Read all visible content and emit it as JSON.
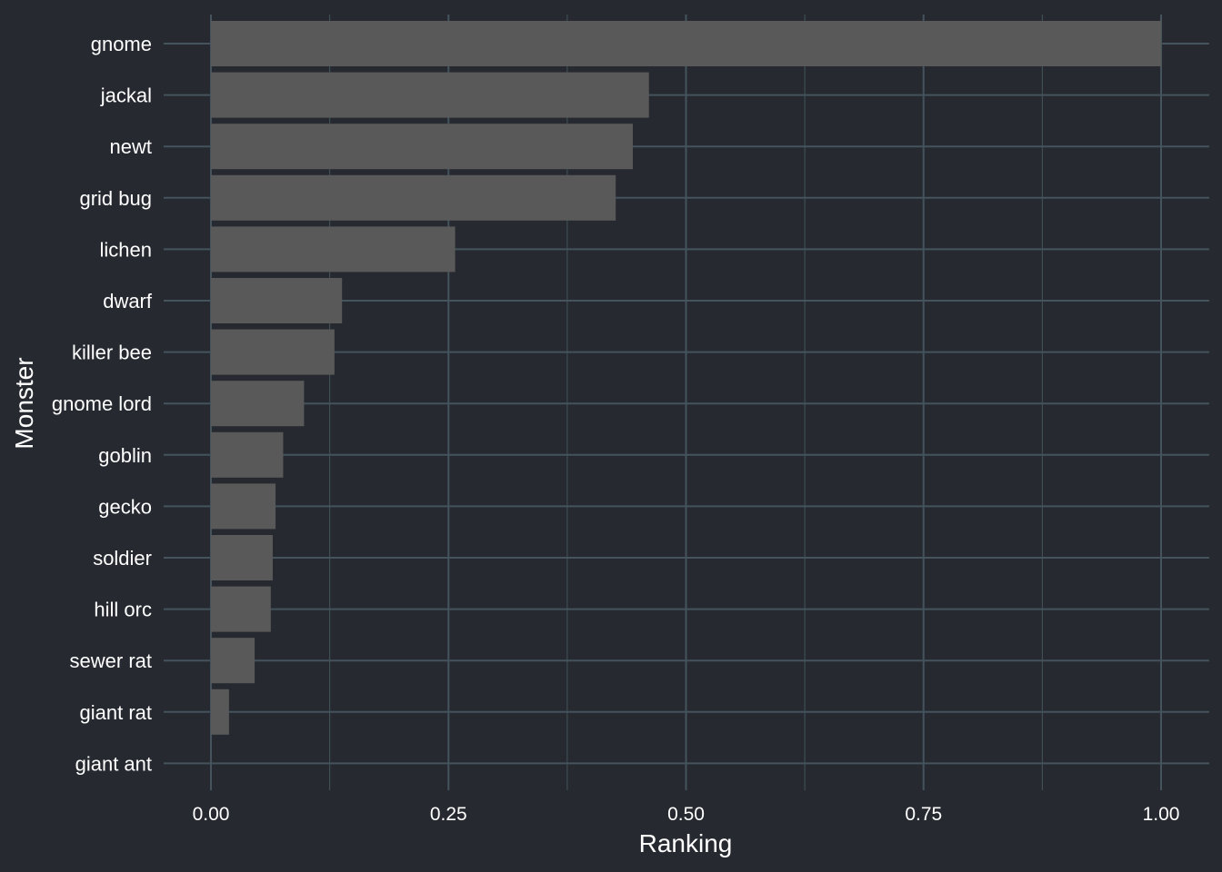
{
  "chart_data": {
    "type": "bar",
    "orientation": "horizontal",
    "xlabel": "Ranking",
    "ylabel": "Monster",
    "xlim": [
      0,
      1
    ],
    "x_ticks": [
      0,
      0.25,
      0.5,
      0.75,
      1
    ],
    "x_tick_labels": [
      "0.00",
      "0.25",
      "0.50",
      "0.75",
      "1.00"
    ],
    "grid": true,
    "categories": [
      "gnome",
      "jackal",
      "newt",
      "grid bug",
      "lichen",
      "dwarf",
      "killer bee",
      "gnome lord",
      "goblin",
      "gecko",
      "soldier",
      "hill orc",
      "sewer rat",
      "giant rat",
      "giant ant"
    ],
    "values": [
      1.0,
      0.461,
      0.444,
      0.426,
      0.257,
      0.138,
      0.13,
      0.098,
      0.076,
      0.068,
      0.065,
      0.063,
      0.046,
      0.019,
      0.0
    ],
    "colors": {
      "background": "#262a30",
      "grid": "#44535c",
      "bar": "#595959",
      "text": "#ffffff"
    }
  }
}
